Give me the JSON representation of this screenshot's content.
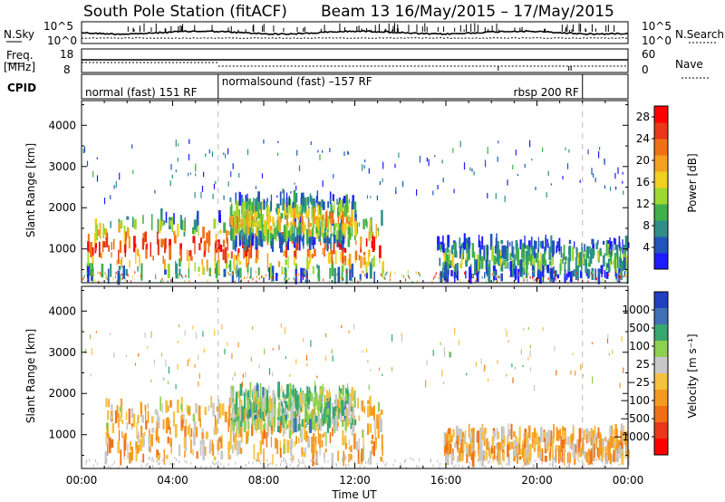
{
  "header": {
    "station": "South Pole Station (fitACF)",
    "beam_dates": "Beam 13 16/May/2015 – 17/May/2015"
  },
  "top_panels": {
    "nsky_label": "N.Sky",
    "nsearch_label": "N.Search",
    "noise_ticks_left": [
      "10^5",
      "10^0"
    ],
    "noise_ticks_right": [
      "10^5",
      "10^0"
    ],
    "freq_label_1": "Freq.",
    "freq_label_2": "[MHz]",
    "freq_ticks": [
      "18",
      "8"
    ],
    "nave_label": "Nave",
    "nave_ticks": [
      "60",
      "0"
    ],
    "cpid_label": "CPID",
    "cpid_segments": [
      {
        "label": "normal (fast) 151 RF",
        "start_hour": 0,
        "end_hour": 6
      },
      {
        "label": "normalsound (fast) –157 RF",
        "start_hour": 6,
        "end_hour": 22
      },
      {
        "label": "rbsp 200 RF",
        "start_hour": 22,
        "end_hour": 24
      }
    ]
  },
  "chart_data": [
    {
      "type": "heatmap",
      "title": "",
      "xlabel": "Time UT",
      "ylabel": "Slant Range [km]",
      "xlim": [
        0,
        24
      ],
      "ylim": [
        180,
        4600
      ],
      "x_tick_labels": [
        "00:00",
        "04:00",
        "08:00",
        "12:00",
        "16:00",
        "20:00",
        "00:00"
      ],
      "y_tick_labels": [
        "1000",
        "2000",
        "3000",
        "4000"
      ],
      "colorbar": {
        "label": "Power [dB]",
        "range": [
          0,
          30
        ],
        "tick_labels": [
          "4",
          "8",
          "12",
          "16",
          "20",
          "24",
          "28"
        ],
        "colors": [
          "#1c1cff",
          "#2255bb",
          "#2f8f88",
          "#3fb04a",
          "#9ed830",
          "#f0d020",
          "#f5a020",
          "#f07018",
          "#e83818",
          "#ff0000"
        ]
      },
      "echo_regions": [
        {
          "t0": 0.2,
          "t1": 13.2,
          "r0": 300,
          "r1": 1800,
          "peak_db": 28
        },
        {
          "t0": 6.5,
          "t1": 12.0,
          "r0": 1100,
          "r1": 2250,
          "peak_db": 20
        },
        {
          "t0": 15.6,
          "t1": 24.0,
          "r0": 300,
          "r1": 1200,
          "peak_db": 12
        }
      ]
    },
    {
      "type": "heatmap",
      "title": "",
      "xlabel": "Time UT",
      "ylabel": "Slant Range [km]",
      "xlim": [
        0,
        24
      ],
      "ylim": [
        180,
        4600
      ],
      "x_tick_labels": [
        "00:00",
        "04:00",
        "08:00",
        "12:00",
        "16:00",
        "20:00",
        "00:00"
      ],
      "y_tick_labels": [
        "1000",
        "2000",
        "3000",
        "4000"
      ],
      "colorbar": {
        "label": "Velocity [m s⁻¹]",
        "range": [
          -1000,
          1000
        ],
        "tick_labels": [
          "1000",
          "500",
          "100",
          "25",
          "−25",
          "−100",
          "−500",
          "−1000"
        ],
        "colors": [
          "#2040c0",
          "#3f70b8",
          "#36a870",
          "#8ed050",
          "#c8c8c8",
          "#f6c040",
          "#f59a20",
          "#f07018",
          "#e83818",
          "#ff0000"
        ]
      },
      "echo_regions": [
        {
          "t0": 1.0,
          "t1": 13.2,
          "r0": 400,
          "r1": 1800,
          "mean_velocity": -150
        },
        {
          "t0": 6.5,
          "t1": 12.0,
          "r0": 1200,
          "r1": 2100,
          "mean_velocity": 300
        },
        {
          "t0": 15.8,
          "t1": 24.0,
          "r0": 400,
          "r1": 1100,
          "mean_velocity": -200
        }
      ]
    }
  ]
}
